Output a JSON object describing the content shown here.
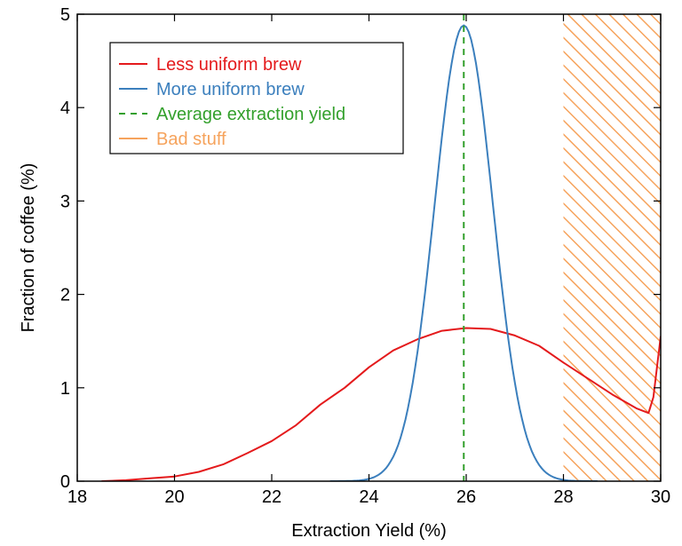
{
  "chart_data": {
    "type": "line",
    "title": "",
    "xlabel": "Extraction Yield (%)",
    "ylabel": "Fraction of coffee (%)",
    "xlim": [
      18,
      30
    ],
    "ylim": [
      0,
      5
    ],
    "x_ticks": [
      18,
      20,
      22,
      24,
      26,
      28,
      30
    ],
    "y_ticks": [
      0,
      1,
      2,
      3,
      4,
      5
    ],
    "grid": false,
    "legend_position": "top-left",
    "series": [
      {
        "name": "Less uniform brew",
        "color": "#e41a1c",
        "style": "solid",
        "points": [
          [
            18.5,
            0
          ],
          [
            19,
            0.01
          ],
          [
            19.5,
            0.03
          ],
          [
            20,
            0.05
          ],
          [
            20.5,
            0.1
          ],
          [
            21,
            0.18
          ],
          [
            21.5,
            0.3
          ],
          [
            22,
            0.43
          ],
          [
            22.5,
            0.6
          ],
          [
            23,
            0.82
          ],
          [
            23.5,
            1.0
          ],
          [
            24,
            1.22
          ],
          [
            24.5,
            1.4
          ],
          [
            25,
            1.52
          ],
          [
            25.5,
            1.61
          ],
          [
            26,
            1.64
          ],
          [
            26.5,
            1.63
          ],
          [
            27,
            1.56
          ],
          [
            27.5,
            1.45
          ],
          [
            28,
            1.27
          ],
          [
            28.5,
            1.1
          ],
          [
            29,
            0.93
          ],
          [
            29.5,
            0.78
          ],
          [
            29.75,
            0.73
          ],
          [
            29.85,
            0.9
          ],
          [
            30,
            1.55
          ]
        ]
      },
      {
        "name": "More uniform brew",
        "color": "#3b7fbd",
        "style": "solid",
        "gaussian": {
          "mean": 25.95,
          "peak": 4.88,
          "sigma": 0.6,
          "x_from": 23.2,
          "x_to": 28.7
        }
      },
      {
        "name": "Average extraction yield",
        "color": "#33a02c",
        "style": "dashed",
        "vertical_x": 25.95
      },
      {
        "name": "Bad stuff",
        "color": "#f6a35c",
        "style": "hatched-region",
        "x_range": [
          28,
          30
        ]
      }
    ]
  }
}
